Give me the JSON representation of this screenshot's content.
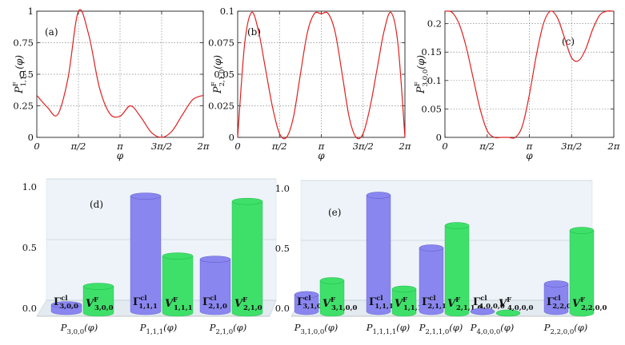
{
  "figure": {
    "line_color": "#e02020",
    "bar_purple": "#8a86f0",
    "bar_green": "#3fe06a",
    "grid_color": "#888888",
    "wall_color": "#dfeaf3"
  },
  "chart_data": [
    {
      "type": "line",
      "panel_label": "(a)",
      "ylabel_main": "P",
      "ylabel_sup": "F",
      "ylabel_sub": "1,1,1",
      "ylabel_arg": "(φ)",
      "xlabel": "φ",
      "xlim": [
        0,
        6.2832
      ],
      "ylim": [
        0,
        1
      ],
      "xtick_labels": [
        "0",
        "π/2",
        "π",
        "3π/2",
        "2π"
      ],
      "ytick_labels": [
        "0",
        "0.25",
        "0.5",
        "0.75",
        "1"
      ],
      "ytick_values": [
        0,
        0.25,
        0.5,
        0.75,
        1
      ],
      "series": [
        {
          "name": "P_{1,1,1}^F",
          "x": [
            0,
            0.3927,
            0.7854,
            1.1781,
            1.5708,
            1.9635,
            2.3562,
            2.7489,
            3.1416,
            3.5343,
            3.927,
            4.3197,
            4.7124,
            5.1051,
            5.4978,
            5.8905,
            6.2832
          ],
          "y": [
            0.333,
            0.24,
            0.18,
            0.47,
            1.0,
            0.81,
            0.4,
            0.19,
            0.167,
            0.25,
            0.16,
            0.04,
            0.0,
            0.05,
            0.18,
            0.3,
            0.333
          ]
        }
      ]
    },
    {
      "type": "line",
      "panel_label": "(b)",
      "ylabel_main": "P",
      "ylabel_sup": "F",
      "ylabel_sub": "2,1,0",
      "ylabel_arg": "(φ)",
      "xlabel": "φ",
      "xlim": [
        0,
        6.2832
      ],
      "ylim": [
        0,
        0.1
      ],
      "xtick_labels": [
        "0",
        "π/2",
        "π",
        "3π/2",
        "2π"
      ],
      "ytick_labels": [
        "0",
        "0.025",
        "0.05",
        "0.075",
        "0.1"
      ],
      "ytick_values": [
        0,
        0.025,
        0.05,
        0.075,
        0.1
      ],
      "series": [
        {
          "name": "P_{2,1,0}^F",
          "x": [
            0,
            0.2618,
            0.5236,
            0.7854,
            1.0472,
            1.309,
            1.5708,
            1.8326,
            2.0944,
            2.3562,
            2.618,
            2.8798,
            3.1416,
            3.4034,
            3.6652,
            3.927,
            4.1888,
            4.4506,
            4.7124,
            4.9742,
            5.236,
            5.4978,
            5.7596,
            6.0214,
            6.2832
          ],
          "y": [
            0.0,
            0.074,
            0.099,
            0.084,
            0.054,
            0.024,
            0.003,
            0.0,
            0.016,
            0.05,
            0.083,
            0.098,
            0.098,
            0.098,
            0.083,
            0.05,
            0.016,
            0.0,
            0.003,
            0.024,
            0.054,
            0.084,
            0.099,
            0.074,
            0.0
          ]
        }
      ]
    },
    {
      "type": "line",
      "panel_label": "(c)",
      "ylabel_main": "P",
      "ylabel_sup": "F",
      "ylabel_sub": "3,0,0",
      "ylabel_arg": "(φ)",
      "xlabel": "φ",
      "xlim": [
        0,
        6.2832
      ],
      "ylim": [
        0,
        0.222
      ],
      "xtick_labels": [
        "0",
        "π/2",
        "π",
        "3π/2",
        "2π"
      ],
      "ytick_labels": [
        "0",
        "0.05",
        "0.1",
        "0.15",
        "0.2"
      ],
      "ytick_values": [
        0,
        0.05,
        0.1,
        0.15,
        0.2
      ],
      "series": [
        {
          "name": "P_{3,0,0}^F",
          "x": [
            0,
            0.2618,
            0.5236,
            0.7854,
            1.0472,
            1.309,
            1.5708,
            1.8326,
            2.0944,
            2.3562,
            2.618,
            2.8798,
            3.1416,
            3.4034,
            3.6652,
            3.927,
            4.1888,
            4.4506,
            4.7124,
            4.9742,
            5.236,
            5.4978,
            5.7596,
            6.0214,
            6.2832
          ],
          "y": [
            0.222,
            0.22,
            0.2,
            0.16,
            0.105,
            0.05,
            0.012,
            0.0,
            0.0,
            0.0,
            0.0,
            0.02,
            0.075,
            0.145,
            0.2,
            0.222,
            0.21,
            0.175,
            0.14,
            0.135,
            0.155,
            0.19,
            0.215,
            0.222,
            0.222
          ]
        }
      ]
    },
    {
      "type": "bar",
      "panel_label": "(d)",
      "ylim": [
        0,
        1
      ],
      "ytick_labels": [
        "0.0",
        "0.5",
        "1.0"
      ],
      "ytick_values": [
        0,
        0.5,
        1
      ],
      "categories": [
        "P3,0,0(φ)",
        "P1,1,1(φ)",
        "P2,1,0(φ)"
      ],
      "category_main": [
        "P",
        "P",
        "P"
      ],
      "category_sub": [
        "3,0,0",
        "1,1,1",
        "2,1,0"
      ],
      "category_arg": [
        "(φ)",
        "(φ)",
        "(φ)"
      ],
      "series": [
        {
          "name": "Γcl",
          "label_main": "Γ",
          "label_sup": "cl",
          "label_subs": [
            "3,0,0",
            "1,1,1",
            "2,1,0"
          ],
          "values": [
            0.055,
            0.95,
            0.43
          ]
        },
        {
          "name": "VF",
          "label_main": "V",
          "label_sup": "F",
          "label_subs": [
            "3,0,0",
            "1,1,1",
            "2,1,0"
          ],
          "values": [
            0.22,
            0.47,
            0.92
          ]
        }
      ]
    },
    {
      "type": "bar",
      "panel_label": "(e)",
      "ylim": [
        0,
        1
      ],
      "ytick_labels": [
        "0.0",
        "0.5",
        "1.0"
      ],
      "ytick_values": [
        0,
        0.5,
        1
      ],
      "categories": [
        "P3,1,0,0(φ)",
        "P1,1,1,1(φ)",
        "P2,1,1,0(φ)",
        "P4,0,0,0(φ)",
        "P2,2,0,0(φ)"
      ],
      "category_main": [
        "P",
        "P",
        "P",
        "P",
        "P"
      ],
      "category_sub": [
        "3,1,0,0",
        "1,1,1,1",
        "2,1,1,0",
        "4,0,0,0",
        "2,2,0,0"
      ],
      "category_arg": [
        "(φ)",
        "(φ)",
        "(φ)",
        "(φ)",
        "(φ)"
      ],
      "series": [
        {
          "name": "Γcl",
          "label_main": "Γ",
          "label_sup": "cl",
          "label_subs": [
            "3,1,0,0",
            "1,1,1,1",
            "2,1,1,0",
            "4,0,0,0",
            "2,2,0,0"
          ],
          "values": [
            0.14,
            0.97,
            0.53,
            0.0,
            0.23
          ]
        },
        {
          "name": "VF",
          "label_main": "V",
          "label_sup": "F",
          "label_subs": [
            "3,1,0,0",
            "1,1,1,1",
            "2,1,1,0",
            "4,0,0,0",
            "2,2,0,0"
          ],
          "values": [
            0.27,
            0.2,
            0.73,
            0.0,
            0.69
          ]
        }
      ]
    }
  ]
}
